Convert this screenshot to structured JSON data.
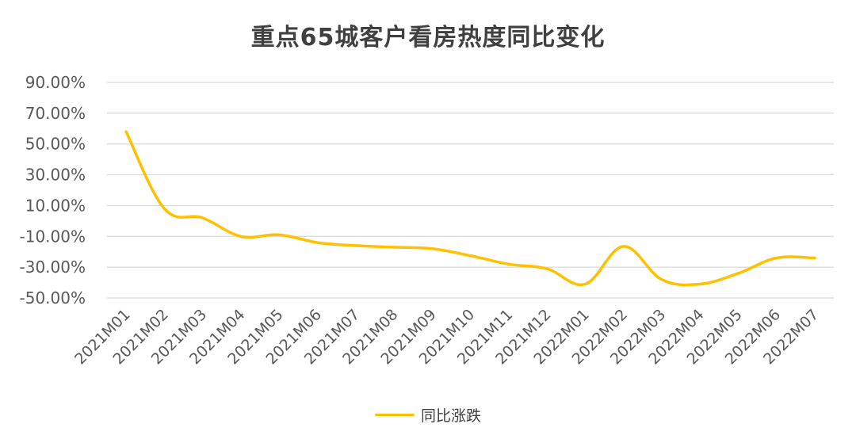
{
  "chart_data": {
    "type": "line",
    "title": "重点65城客户看房热度同比变化",
    "categories": [
      "2021M01",
      "2021M02",
      "2021M03",
      "2021M04",
      "2021M05",
      "2021M06",
      "2021M07",
      "2021M08",
      "2021M09",
      "2021M10",
      "2021M11",
      "2021M12",
      "2022M01",
      "2022M02",
      "2022M03",
      "2022M04",
      "2022M05",
      "2022M06",
      "2022M07"
    ],
    "series": [
      {
        "name": "同比涨跌",
        "color": "#FFC000",
        "values": [
          58.0,
          8.0,
          2.0,
          -10.0,
          -9.0,
          -14.0,
          -16.0,
          -17.0,
          -18.0,
          -22.5,
          -28.0,
          -31.0,
          -41.0,
          -16.5,
          -38.0,
          -41.0,
          -34.0,
          -24.0,
          -24.0
        ]
      }
    ],
    "ylim": [
      -50,
      90
    ],
    "yticks": [
      "90.00%",
      "70.00%",
      "50.00%",
      "30.00%",
      "10.00%",
      "-10.00%",
      "-30.00%",
      "-50.00%"
    ],
    "xlabel": "",
    "ylabel": "",
    "grid": true,
    "gridColor": "#D9D9D9",
    "legend": "bottom",
    "smooth": true
  }
}
